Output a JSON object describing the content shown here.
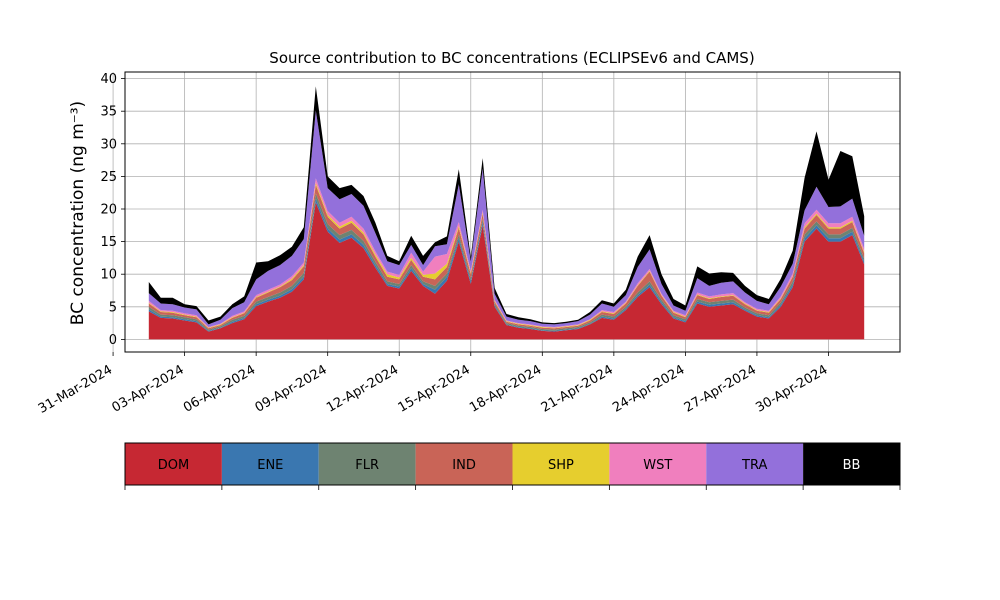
{
  "chart_data": {
    "type": "area",
    "title": "Source contribution to BC concentrations (ECLIPSEv6 and CAMS)",
    "xlabel": "",
    "ylabel": "BC concentration (ng m⁻³)",
    "ylim": [
      0,
      41
    ],
    "xlim": [
      "2024-03-31T12:00",
      "2024-05-03T00:00"
    ],
    "yticks": [
      0,
      5,
      10,
      15,
      20,
      25,
      30,
      35,
      40
    ],
    "xticks": [
      "31-Mar-2024",
      "03-Apr-2024",
      "06-Apr-2024",
      "09-Apr-2024",
      "12-Apr-2024",
      "15-Apr-2024",
      "18-Apr-2024",
      "21-Apr-2024",
      "24-Apr-2024",
      "27-Apr-2024",
      "30-Apr-2024"
    ],
    "grid": true,
    "stacked": true,
    "x": [
      "2024-04-01T12:00",
      "2024-04-02T00:00",
      "2024-04-02T12:00",
      "2024-04-03T00:00",
      "2024-04-03T12:00",
      "2024-04-04T00:00",
      "2024-04-04T12:00",
      "2024-04-05T00:00",
      "2024-04-05T12:00",
      "2024-04-06T00:00",
      "2024-04-06T12:00",
      "2024-04-07T00:00",
      "2024-04-07T12:00",
      "2024-04-08T00:00",
      "2024-04-08T12:00",
      "2024-04-09T00:00",
      "2024-04-09T12:00",
      "2024-04-10T00:00",
      "2024-04-10T12:00",
      "2024-04-11T00:00",
      "2024-04-11T12:00",
      "2024-04-12T00:00",
      "2024-04-12T12:00",
      "2024-04-13T00:00",
      "2024-04-13T12:00",
      "2024-04-14T00:00",
      "2024-04-14T12:00",
      "2024-04-15T00:00",
      "2024-04-15T12:00",
      "2024-04-16T00:00",
      "2024-04-16T12:00",
      "2024-04-17T00:00",
      "2024-04-17T12:00",
      "2024-04-18T00:00",
      "2024-04-18T12:00",
      "2024-04-19T00:00",
      "2024-04-19T12:00",
      "2024-04-20T00:00",
      "2024-04-20T12:00",
      "2024-04-21T00:00",
      "2024-04-21T12:00",
      "2024-04-22T00:00",
      "2024-04-22T12:00",
      "2024-04-23T00:00",
      "2024-04-23T12:00",
      "2024-04-24T00:00",
      "2024-04-24T12:00",
      "2024-04-25T00:00",
      "2024-04-25T12:00",
      "2024-04-26T00:00",
      "2024-04-26T12:00",
      "2024-04-27T00:00",
      "2024-04-27T12:00",
      "2024-04-28T00:00",
      "2024-04-28T12:00",
      "2024-04-29T00:00",
      "2024-04-29T12:00",
      "2024-04-30T00:00",
      "2024-04-30T12:00",
      "2024-05-01T00:00",
      "2024-05-01T12:00"
    ],
    "series": [
      {
        "name": "DOM",
        "color": "#c62833",
        "values": [
          4.3,
          3.3,
          3.2,
          2.9,
          2.6,
          1.2,
          1.7,
          2.5,
          3.1,
          5.1,
          5.8,
          6.4,
          7.3,
          9.2,
          21.0,
          16.5,
          14.8,
          15.6,
          14.0,
          11.0,
          8.2,
          7.8,
          10.5,
          8.2,
          7.0,
          9.0,
          15.0,
          8.5,
          17.5,
          5.0,
          2.2,
          1.8,
          1.6,
          1.3,
          1.2,
          1.4,
          1.6,
          2.3,
          3.3,
          3.0,
          4.5,
          6.5,
          8.0,
          5.4,
          3.2,
          2.6,
          5.5,
          5.0,
          5.2,
          5.4,
          4.4,
          3.5,
          3.2,
          5.0,
          8.0,
          15.0,
          17.0,
          15.0,
          15.0,
          16.0,
          11.5
        ]
      },
      {
        "name": "ENE",
        "color": "#3a77b0",
        "values": [
          0.3,
          0.2,
          0.2,
          0.2,
          0.2,
          0.1,
          0.1,
          0.2,
          0.2,
          0.3,
          0.3,
          0.3,
          0.4,
          0.4,
          0.6,
          0.5,
          0.5,
          0.5,
          0.5,
          0.4,
          0.3,
          0.3,
          0.4,
          0.3,
          0.6,
          0.6,
          0.5,
          0.4,
          0.5,
          0.2,
          0.1,
          0.1,
          0.1,
          0.1,
          0.1,
          0.1,
          0.1,
          0.1,
          0.2,
          0.2,
          0.2,
          0.3,
          0.4,
          0.3,
          0.2,
          0.2,
          0.3,
          0.3,
          0.3,
          0.3,
          0.2,
          0.2,
          0.2,
          0.3,
          0.4,
          0.5,
          0.5,
          0.5,
          0.5,
          0.5,
          0.4
        ]
      },
      {
        "name": "FLR",
        "color": "#6e8371",
        "values": [
          0.4,
          0.3,
          0.3,
          0.3,
          0.3,
          0.2,
          0.2,
          0.3,
          0.3,
          0.4,
          0.4,
          0.5,
          0.5,
          0.6,
          0.8,
          0.7,
          0.7,
          0.7,
          0.6,
          0.5,
          0.4,
          0.4,
          0.5,
          0.4,
          0.6,
          0.5,
          0.6,
          0.4,
          0.5,
          0.3,
          0.2,
          0.2,
          0.2,
          0.2,
          0.2,
          0.2,
          0.2,
          0.2,
          0.3,
          0.3,
          0.3,
          0.4,
          0.5,
          0.4,
          0.3,
          0.3,
          0.4,
          0.4,
          0.4,
          0.4,
          0.3,
          0.3,
          0.3,
          0.4,
          0.5,
          0.6,
          0.6,
          0.6,
          0.6,
          0.6,
          0.5
        ]
      },
      {
        "name": "IND",
        "color": "#c96457",
        "values": [
          0.5,
          0.4,
          0.4,
          0.3,
          0.3,
          0.2,
          0.2,
          0.3,
          0.4,
          0.6,
          0.7,
          0.8,
          0.9,
          1.0,
          1.3,
          1.1,
          1.0,
          1.1,
          1.0,
          0.8,
          0.7,
          0.7,
          0.8,
          0.7,
          1.0,
          1.0,
          1.0,
          0.7,
          0.8,
          0.3,
          0.2,
          0.2,
          0.2,
          0.2,
          0.2,
          0.2,
          0.2,
          0.3,
          0.4,
          0.4,
          0.5,
          1.0,
          1.5,
          0.6,
          0.4,
          0.3,
          0.6,
          0.5,
          0.6,
          0.6,
          0.5,
          0.4,
          0.4,
          0.5,
          0.7,
          0.9,
          1.0,
          0.9,
          0.9,
          0.9,
          0.8
        ]
      },
      {
        "name": "SHP",
        "color": "#e6ce2e",
        "values": [
          0.1,
          0.1,
          0.1,
          0.1,
          0.1,
          0.1,
          0.1,
          0.1,
          0.1,
          0.1,
          0.1,
          0.1,
          0.2,
          0.2,
          0.3,
          0.3,
          0.3,
          0.3,
          0.3,
          0.3,
          0.4,
          0.3,
          0.3,
          0.3,
          0.9,
          0.5,
          0.3,
          0.2,
          0.2,
          0.1,
          0.1,
          0.1,
          0.1,
          0.1,
          0.1,
          0.1,
          0.1,
          0.1,
          0.1,
          0.1,
          0.1,
          0.1,
          0.1,
          0.1,
          0.1,
          0.1,
          0.1,
          0.1,
          0.1,
          0.1,
          0.1,
          0.1,
          0.1,
          0.1,
          0.1,
          0.2,
          0.2,
          0.2,
          0.2,
          0.2,
          0.2
        ]
      },
      {
        "name": "WST",
        "color": "#f07fbe",
        "values": [
          0.3,
          0.2,
          0.2,
          0.2,
          0.2,
          0.1,
          0.1,
          0.2,
          0.2,
          0.3,
          0.3,
          0.3,
          0.4,
          0.4,
          0.7,
          0.6,
          0.6,
          0.6,
          0.6,
          0.5,
          0.4,
          0.4,
          0.8,
          0.5,
          2.6,
          1.5,
          0.6,
          0.3,
          0.4,
          0.2,
          0.1,
          0.1,
          0.1,
          0.1,
          0.1,
          0.1,
          0.1,
          0.1,
          0.2,
          0.2,
          0.2,
          0.3,
          0.3,
          0.2,
          0.2,
          0.2,
          0.3,
          0.3,
          0.3,
          0.3,
          0.2,
          0.2,
          0.2,
          0.3,
          0.4,
          0.6,
          0.6,
          0.6,
          0.6,
          0.6,
          0.5
        ]
      },
      {
        "name": "TRA",
        "color": "#9370db",
        "values": [
          1.2,
          1.0,
          1.0,
          0.9,
          0.9,
          0.4,
          0.6,
          1.2,
          1.4,
          2.4,
          2.9,
          3.0,
          3.1,
          3.6,
          10.4,
          3.5,
          3.6,
          3.5,
          3.5,
          2.8,
          1.6,
          1.5,
          1.2,
          1.0,
          1.6,
          1.5,
          5.8,
          1.5,
          6.3,
          0.9,
          0.6,
          0.5,
          0.5,
          0.4,
          0.4,
          0.4,
          0.5,
          0.7,
          1.0,
          0.8,
          1.0,
          2.5,
          3.0,
          1.5,
          0.8,
          0.7,
          2.2,
          1.6,
          1.8,
          1.8,
          1.5,
          1.2,
          1.0,
          1.5,
          1.5,
          2.0,
          3.5,
          2.5,
          2.6,
          2.8,
          2.0
        ]
      },
      {
        "name": "BB",
        "color": "#000000",
        "values": [
          1.7,
          0.9,
          1.0,
          0.5,
          0.5,
          0.6,
          0.5,
          0.6,
          0.9,
          2.6,
          1.5,
          1.5,
          1.4,
          1.8,
          3.7,
          1.8,
          1.7,
          1.4,
          1.5,
          1.6,
          0.8,
          0.6,
          1.4,
          1.4,
          0.6,
          1.2,
          2.3,
          0.6,
          1.6,
          0.9,
          0.4,
          0.4,
          0.3,
          0.2,
          0.2,
          0.2,
          0.2,
          0.4,
          0.5,
          0.5,
          0.8,
          1.6,
          2.2,
          1.5,
          1.0,
          0.8,
          1.8,
          1.9,
          1.6,
          1.3,
          1.0,
          0.9,
          0.8,
          1.2,
          2.0,
          5.0,
          8.5,
          4.2,
          8.5,
          6.5,
          3.0
        ]
      }
    ],
    "legend_placement": "bottom"
  }
}
